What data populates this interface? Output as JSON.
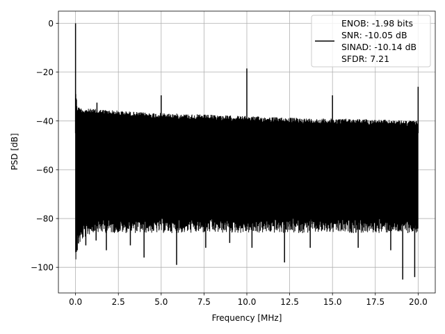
{
  "chart_data": {
    "type": "line",
    "title": "",
    "xlabel": "Frequency [MHz]",
    "ylabel": "PSD [dB]",
    "xlim": [
      -1.0,
      21.0
    ],
    "ylim": [
      -110.5,
      5.0
    ],
    "x_ticks": [
      0.0,
      2.5,
      5.0,
      7.5,
      10.0,
      12.5,
      15.0,
      17.5,
      20.0
    ],
    "x_tick_labels": [
      "0.0",
      "2.5",
      "5.0",
      "7.5",
      "10.0",
      "12.5",
      "15.0",
      "17.5",
      "20.0"
    ],
    "y_ticks": [
      0,
      -20,
      -40,
      -60,
      -80,
      -100
    ],
    "y_tick_labels": [
      "0",
      "−20",
      "−40",
      "−60",
      "−80",
      "−100"
    ],
    "grid": true,
    "legend_position": "top-right",
    "line_color": "#000000",
    "noise_floor": {
      "x": [
        0.0,
        0.1,
        0.5,
        1.0,
        2.0,
        4.0,
        6.0,
        8.0,
        10.0,
        12.0,
        14.0,
        16.0,
        18.0,
        20.0
      ],
      "upper_db": [
        -26,
        -34,
        -35,
        -35,
        -35.5,
        -36.5,
        -37,
        -37.5,
        -38,
        -38.5,
        -39,
        -39,
        -39.5,
        -40
      ],
      "lower_db": [
        -92,
        -86,
        -82,
        -80,
        -80,
        -80,
        -80,
        -80,
        -80,
        -80,
        -80,
        -80,
        -80,
        -80
      ]
    },
    "peaks": [
      {
        "x": 0.0,
        "y": 0.0
      },
      {
        "x": 10.0,
        "y": -18.5
      },
      {
        "x": 5.0,
        "y": -29.5
      },
      {
        "x": 15.0,
        "y": -29.5
      },
      {
        "x": 20.0,
        "y": -26.0
      },
      {
        "x": 1.25,
        "y": -32.5
      }
    ],
    "dips": [
      {
        "x": 0.1,
        "y": -93
      },
      {
        "x": 0.6,
        "y": -91
      },
      {
        "x": 1.2,
        "y": -89
      },
      {
        "x": 1.8,
        "y": -93
      },
      {
        "x": 3.2,
        "y": -91
      },
      {
        "x": 4.0,
        "y": -96
      },
      {
        "x": 5.9,
        "y": -99
      },
      {
        "x": 7.6,
        "y": -92
      },
      {
        "x": 9.0,
        "y": -90
      },
      {
        "x": 10.3,
        "y": -92
      },
      {
        "x": 12.2,
        "y": -98
      },
      {
        "x": 13.7,
        "y": -92
      },
      {
        "x": 16.5,
        "y": -92
      },
      {
        "x": 18.4,
        "y": -93
      },
      {
        "x": 19.1,
        "y": -105
      },
      {
        "x": 19.8,
        "y": -104
      }
    ],
    "legend": {
      "entries": [
        "ENOB: -1.98 bits",
        "SNR: -10.05 dB",
        "SINAD: -10.14 dB",
        "SFDR: 7.21"
      ]
    }
  }
}
